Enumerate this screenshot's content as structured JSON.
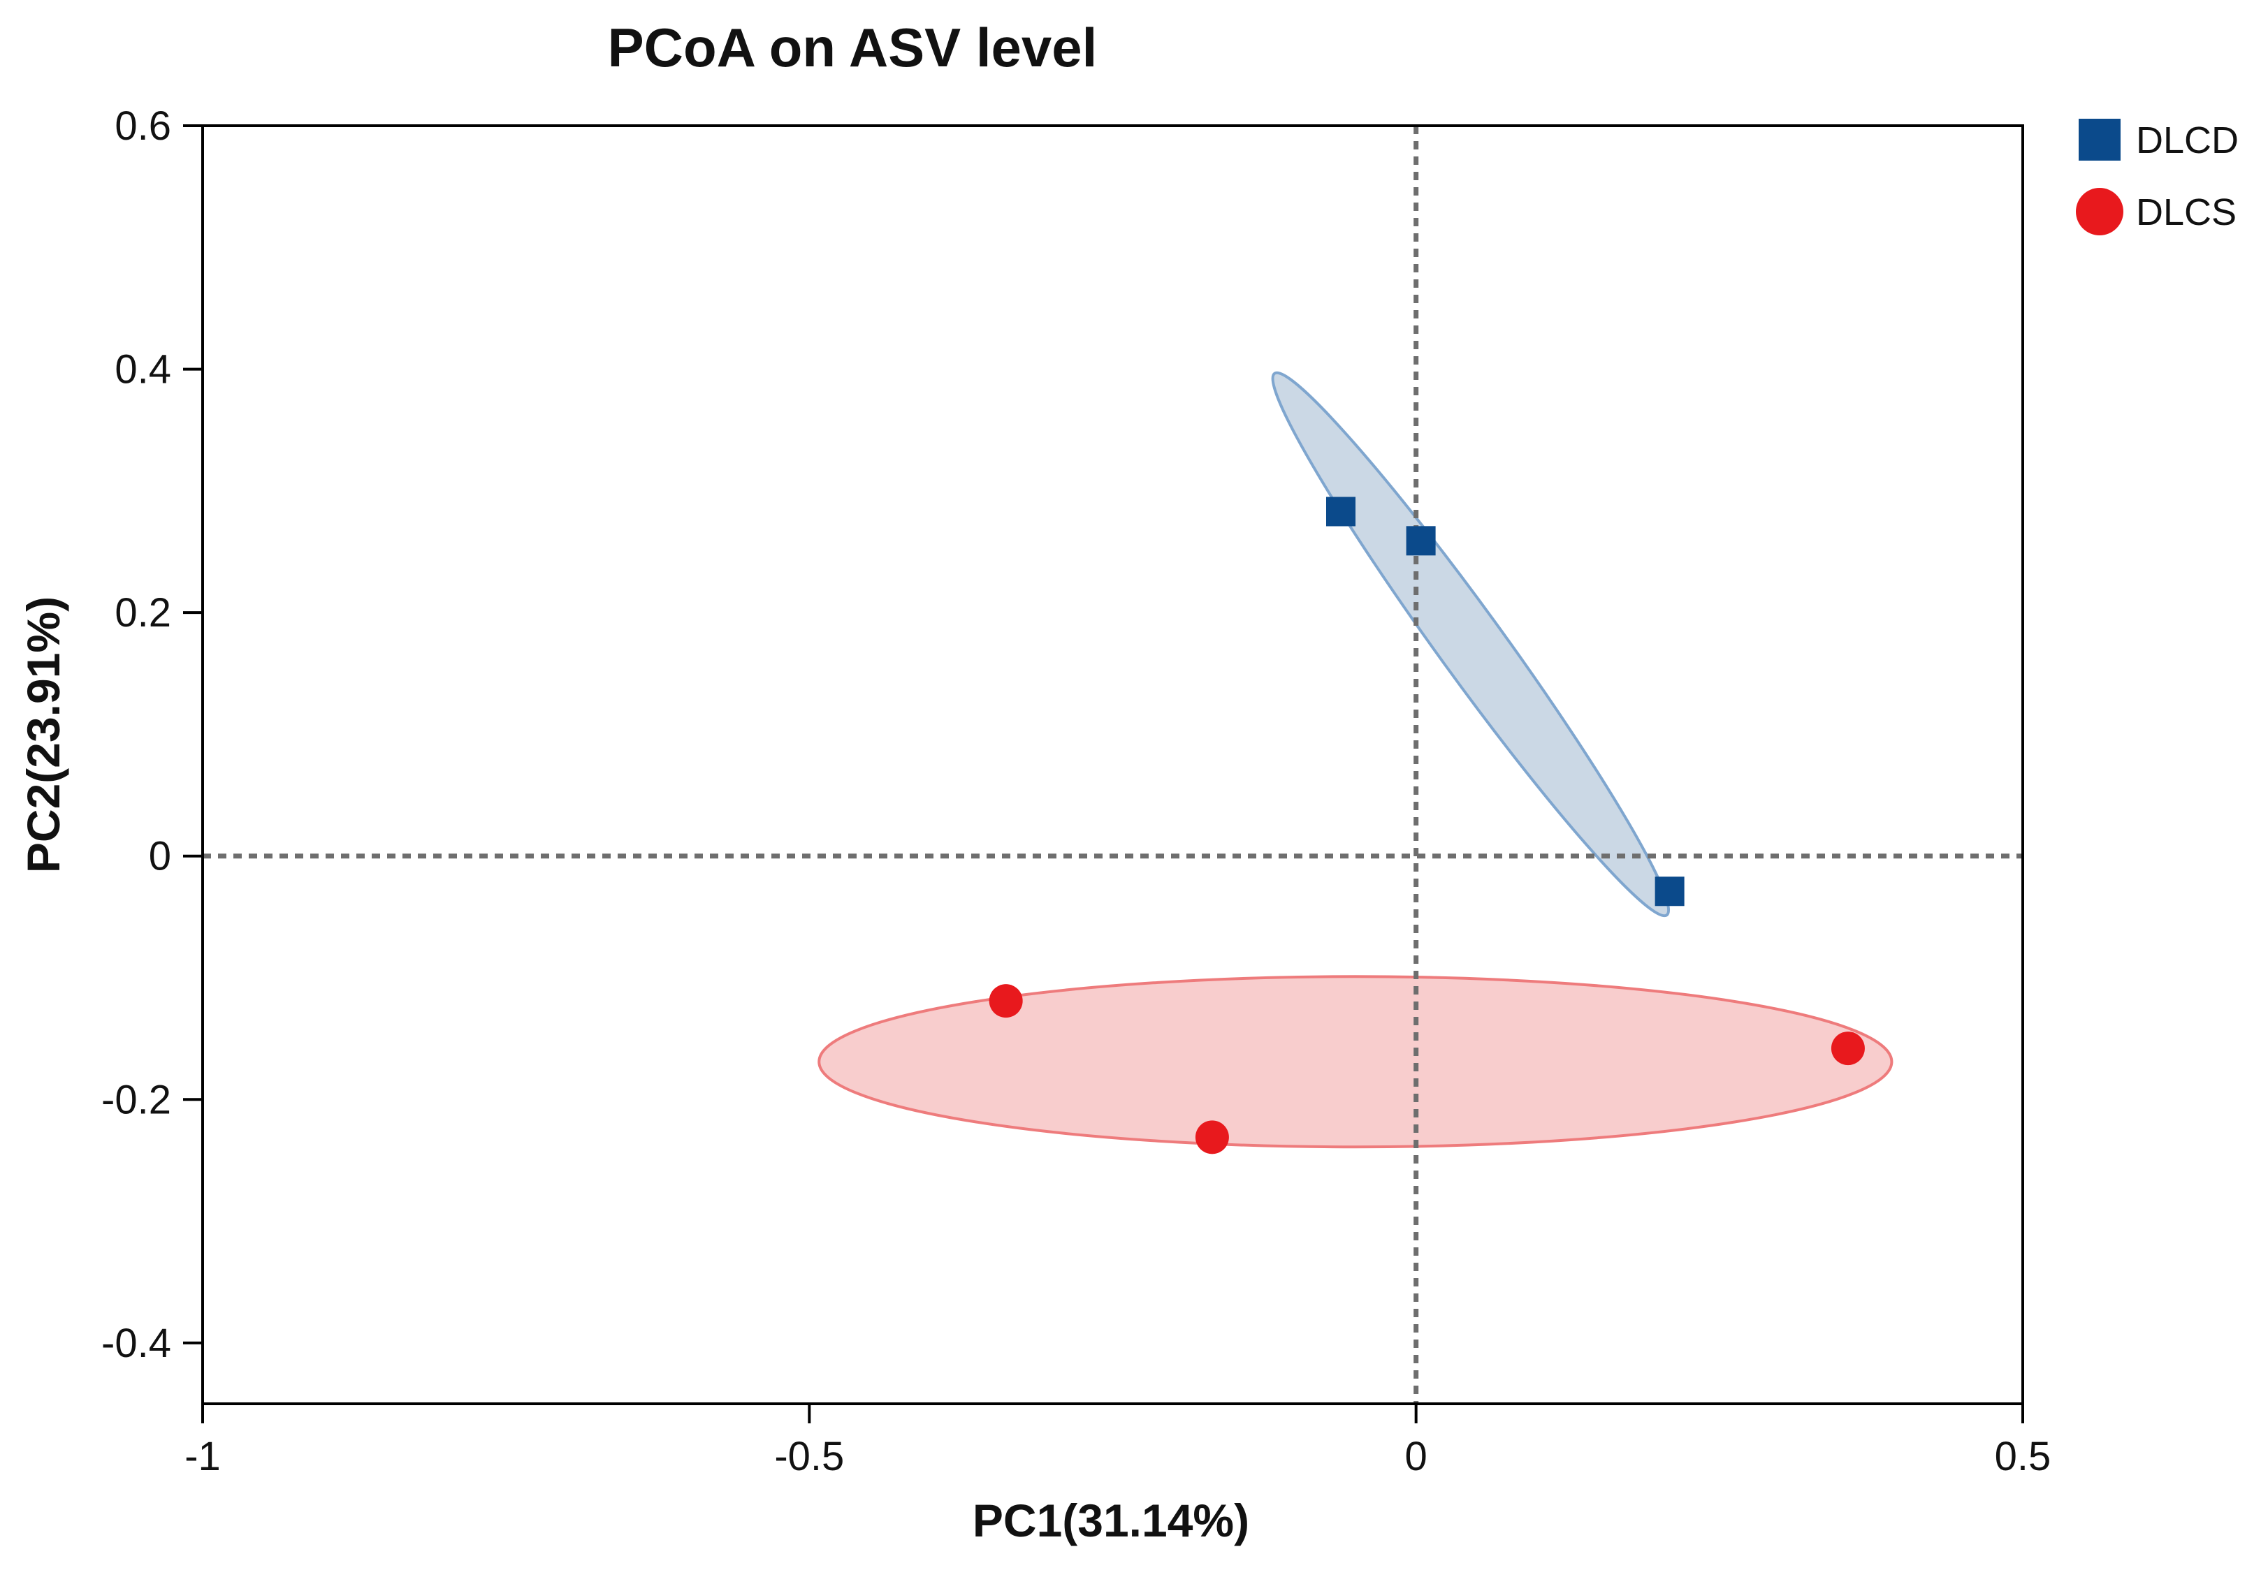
{
  "chart_data": {
    "type": "scatter",
    "title": "PCoA on ASV level",
    "xlabel": "PC1(31.14%)",
    "ylabel": "PC2(23.91%)",
    "xlim": [
      -1,
      0.5
    ],
    "ylim": [
      -0.45,
      0.6
    ],
    "x_ticks": [
      -1,
      -0.5,
      0,
      0.5
    ],
    "x_tick_labels": [
      "-1",
      "-0.5",
      "0",
      "0.5"
    ],
    "y_ticks": [
      -0.4,
      -0.2,
      0,
      0.2,
      0.4,
      0.6
    ],
    "y_tick_labels": [
      "-0.4",
      "-0.2",
      "0",
      "0.2",
      "0.4",
      "0.6"
    ],
    "reference_lines": {
      "x": 0,
      "y": 0,
      "style": "dotted"
    },
    "legend_position": "top-right, outside plot",
    "series": [
      {
        "name": "DLCD",
        "marker": "square",
        "color": "#0b4a8b",
        "ellipse_fill": "#c8d6e4",
        "ellipse_stroke": "#7fa6cf",
        "points": [
          {
            "x": -0.062,
            "y": 0.283
          },
          {
            "x": 0.004,
            "y": 0.259
          },
          {
            "x": 0.209,
            "y": -0.029
          }
        ],
        "ellipse": {
          "cx": 0.045,
          "cy": 0.174,
          "rx": 0.275,
          "ry": 0.027,
          "angle_deg": -54
        }
      },
      {
        "name": "DLCS",
        "marker": "circle",
        "color": "#e8191d",
        "ellipse_fill": "#f8caca",
        "ellipse_stroke": "#ee7b7c",
        "points": [
          {
            "x": -0.338,
            "y": -0.119
          },
          {
            "x": -0.168,
            "y": -0.231
          },
          {
            "x": 0.356,
            "y": -0.158
          }
        ],
        "ellipse": {
          "cx": -0.05,
          "cy": -0.169,
          "rx": 0.442,
          "ry": 0.07,
          "angle_deg": 0
        }
      }
    ]
  }
}
